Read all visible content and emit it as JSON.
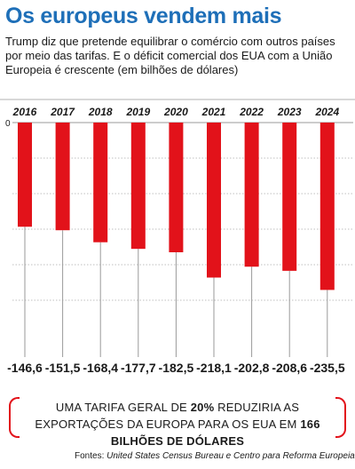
{
  "title": "Os europeus vendem mais",
  "subtitle": "Trump diz que pretende equilibrar o comércio com outros países por meio das tarifas. E o déficit comercial dos EUA com a União Europeia é crescente (em bilhões de dólares)",
  "chart_data": {
    "type": "bar",
    "categories": [
      "2016",
      "2017",
      "2018",
      "2019",
      "2020",
      "2021",
      "2022",
      "2023",
      "2024"
    ],
    "values": [
      -146.6,
      -151.5,
      -168.4,
      -177.7,
      -182.5,
      -218.1,
      -202.8,
      -208.6,
      -235.5
    ],
    "value_labels": [
      "-146,6",
      "-151,5",
      "-168,4",
      "-177,7",
      "-182,5",
      "-218,1",
      "-202,8",
      "-208,6",
      "-235,5"
    ],
    "zero_label": "0",
    "ylim": [
      -260,
      0
    ],
    "grid": true,
    "bar_color": "#e2121a"
  },
  "callout": {
    "part1": "UMA TARIFA GERAL DE ",
    "highlight1": "20%",
    "part2": " REDUZIRIA AS EXPORTAÇÕES DA EUROPA PARA OS EUA EM ",
    "highlight2": "166 BILHÕES DE DÓLARES"
  },
  "source": {
    "prefix": "Fontes: ",
    "text": "United States Census Bureau e Centro para Reforma Europeia"
  }
}
